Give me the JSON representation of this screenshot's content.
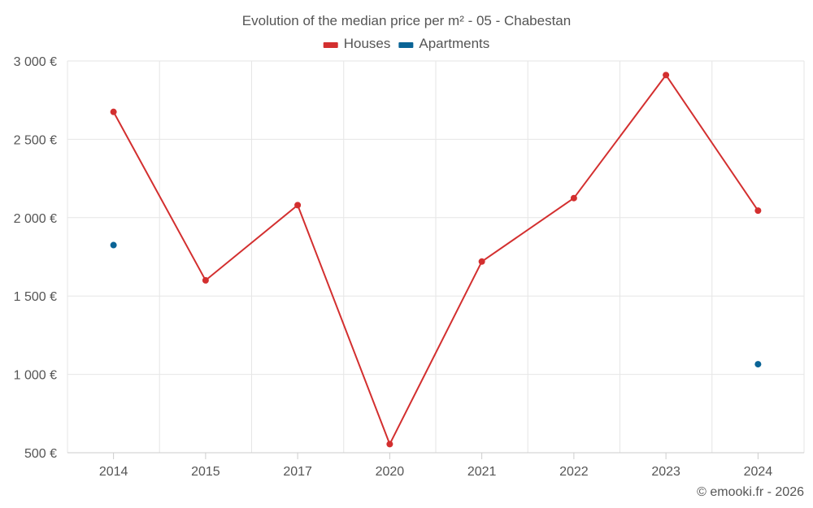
{
  "chart_data": {
    "type": "line",
    "title": "Evolution of the median price per m² - 05 - Chabestan",
    "categories": [
      "2014",
      "2015",
      "2017",
      "2020",
      "2021",
      "2022",
      "2023",
      "2024"
    ],
    "series": [
      {
        "name": "Houses",
        "color": "#d32f2f",
        "values": [
          2675,
          1600,
          2080,
          555,
          1720,
          2125,
          2910,
          2045
        ]
      },
      {
        "name": "Apartments",
        "color": "#0a6496",
        "values": [
          1825,
          null,
          null,
          null,
          null,
          null,
          null,
          1065
        ]
      }
    ],
    "ylim": [
      500,
      3000
    ],
    "yticks": [
      500,
      1000,
      1500,
      2000,
      2500,
      3000
    ],
    "ytick_labels": [
      "500 €",
      "1 000 €",
      "1 500 €",
      "2 000 €",
      "2 500 €",
      "3 000 €"
    ],
    "xlabel": "",
    "ylabel": "",
    "legend_position": "top-center",
    "grid": true
  },
  "credit": "© emooki.fr - 2026"
}
